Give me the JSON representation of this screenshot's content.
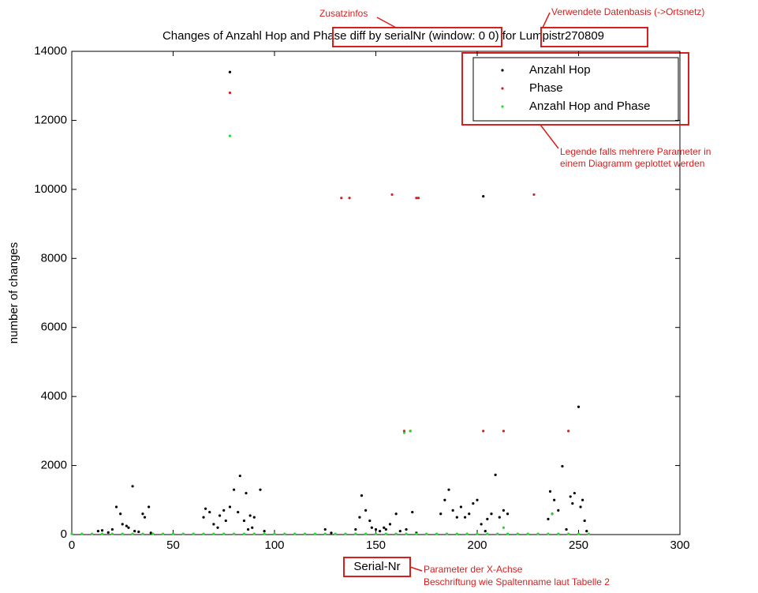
{
  "chart_data": {
    "type": "scatter",
    "title": "Changes of Anzahl Hop and Phase diff by serialNr (window: 0 0) for Lumpistr270809",
    "xlabel": "Serial-Nr",
    "ylabel": "number of changes",
    "xlim": [
      0,
      300
    ],
    "xticks": [
      0,
      50,
      100,
      150,
      200,
      250,
      300
    ],
    "ylim": [
      0,
      14000
    ],
    "yticks": [
      0,
      2000,
      4000,
      6000,
      8000,
      10000,
      12000,
      14000
    ],
    "legend": "upper right",
    "annotations": [
      "Zusatzinfos",
      "Verwendete Datenbasis (->Ortsnetz)",
      "Legende falls mehrere Parameter in",
      "einem Diagramm geplottet werden",
      "Parameter der X-Achse",
      "Beschriftung wie Spaltenname laut Tabelle 2"
    ],
    "series": [
      {
        "name": "Anzahl Hop",
        "color": "#000000",
        "x": [
          13,
          15,
          18,
          20,
          22,
          24,
          25,
          27,
          28,
          30,
          31,
          33,
          35,
          36,
          38,
          39,
          65,
          66,
          68,
          70,
          72,
          73,
          75,
          76,
          78,
          78,
          80,
          82,
          83,
          85,
          86,
          87,
          88,
          89,
          90,
          93,
          95,
          125,
          128,
          140,
          142,
          143,
          145,
          147,
          148,
          150,
          152,
          154,
          155,
          157,
          160,
          162,
          165,
          168,
          170,
          182,
          184,
          186,
          188,
          190,
          192,
          194,
          196,
          198,
          200,
          202,
          203,
          204,
          205,
          207,
          209,
          211,
          213,
          215,
          235,
          236,
          237,
          238,
          240,
          242,
          244,
          246,
          247,
          248,
          250,
          251,
          252,
          253,
          254
        ],
        "values": [
          100,
          120,
          60,
          150,
          800,
          600,
          300,
          250,
          200,
          1400,
          100,
          80,
          600,
          500,
          800,
          50,
          500,
          750,
          650,
          300,
          200,
          550,
          700,
          400,
          13400,
          800,
          1300,
          650,
          1700,
          400,
          1200,
          150,
          550,
          200,
          500,
          1300,
          100,
          150,
          50,
          150,
          500,
          1130,
          700,
          400,
          200,
          150,
          100,
          200,
          150,
          300,
          600,
          100,
          150,
          650,
          50,
          600,
          1000,
          1300,
          700,
          500,
          800,
          500,
          600,
          900,
          1000,
          300,
          9800,
          100,
          450,
          600,
          1730,
          500,
          700,
          600,
          450,
          1250,
          600,
          1000,
          700,
          1980,
          150,
          1100,
          900,
          1200,
          3700,
          800,
          1000,
          400,
          100
        ]
      },
      {
        "name": "Phase",
        "color": "#d62020",
        "x": [
          78,
          133,
          137,
          158,
          164,
          167,
          170,
          171,
          203,
          213,
          228,
          245
        ],
        "values": [
          12800,
          9750,
          9750,
          9850,
          3000,
          3000,
          9750,
          9750,
          3000,
          3000,
          9850,
          3000
        ]
      },
      {
        "name": "Anzahl Hop and Phase",
        "color": "#22dd22",
        "x": [
          0,
          5,
          10,
          15,
          20,
          25,
          30,
          35,
          40,
          45,
          50,
          55,
          60,
          65,
          70,
          75,
          80,
          85,
          90,
          95,
          100,
          105,
          110,
          115,
          120,
          125,
          130,
          135,
          140,
          145,
          150,
          155,
          160,
          165,
          170,
          175,
          180,
          185,
          190,
          195,
          200,
          205,
          210,
          215,
          220,
          225,
          230,
          235,
          240,
          245,
          250,
          255,
          78,
          164,
          167,
          213,
          237
        ],
        "values": [
          20,
          20,
          20,
          20,
          20,
          20,
          20,
          20,
          20,
          20,
          20,
          20,
          20,
          20,
          20,
          20,
          20,
          20,
          20,
          20,
          20,
          20,
          20,
          20,
          20,
          20,
          20,
          20,
          20,
          20,
          20,
          20,
          20,
          20,
          20,
          20,
          20,
          20,
          20,
          20,
          20,
          20,
          20,
          20,
          20,
          20,
          20,
          20,
          20,
          20,
          20,
          20,
          11550,
          2950,
          3000,
          200,
          600
        ]
      }
    ]
  }
}
